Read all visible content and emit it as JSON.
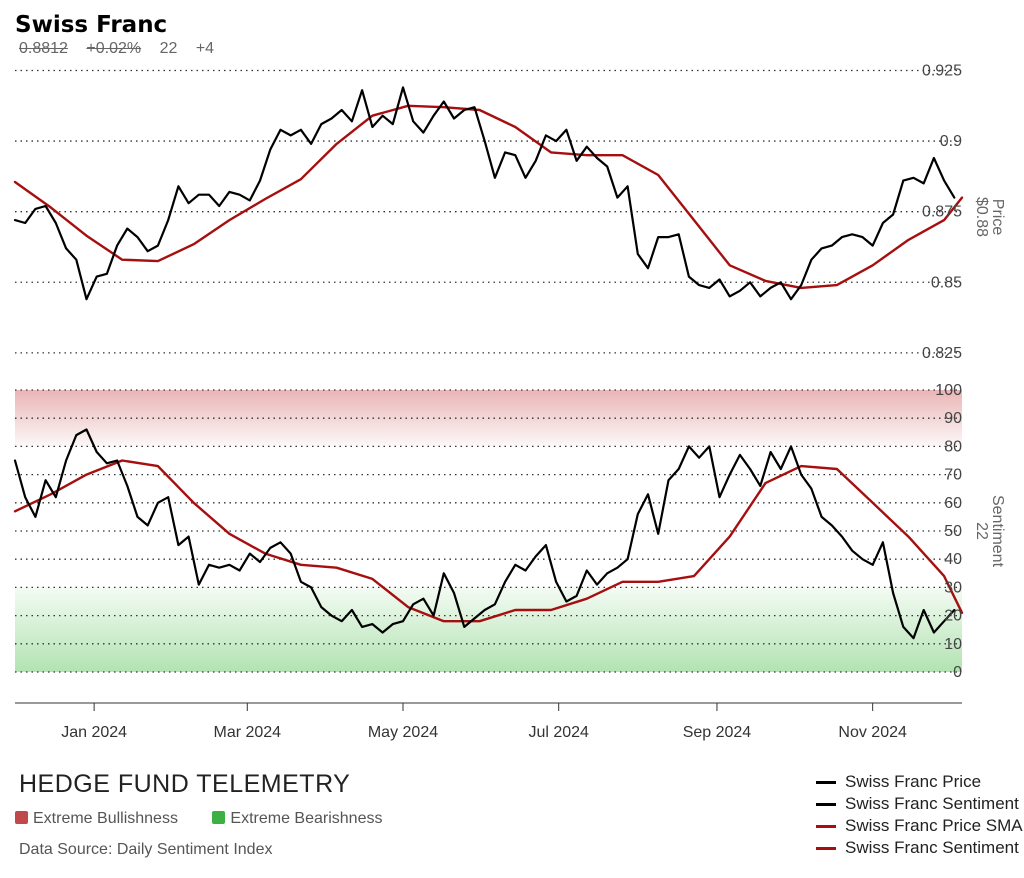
{
  "header": {
    "title": "Swiss Franc",
    "stats": [
      "0.8812",
      "+0.02%",
      "22",
      "+4"
    ]
  },
  "footer": {
    "brand": "HEDGE FUND TELEMETRY",
    "bull_label": "Extreme Bullishness",
    "bear_label": "Extreme Bearishness",
    "source": "Data Source: Daily Sentiment Index"
  },
  "colors": {
    "price": "#000000",
    "sma": "#a50f0f",
    "bull_zone": "#d9787a",
    "bear_zone": "#72cc72",
    "bull_swatch": "#c0494b",
    "bear_swatch": "#3cb043"
  },
  "chart_data": [
    {
      "type": "line",
      "ylabel": "Price",
      "ylabel_value": "$0.88",
      "ylim": [
        0.82,
        0.928
      ],
      "yticks": [
        0.825,
        0.85,
        0.875,
        0.9,
        0.925
      ],
      "ytick_labels": [
        "0.825",
        "0.85",
        "0.875",
        "0.9",
        "0.925"
      ],
      "x_start": "2023-12-01",
      "x_end": "2024-12-06",
      "series": [
        {
          "name": "Swiss Franc Price",
          "color": "#000000",
          "x": [
            "2023-12-01",
            "2023-12-05",
            "2023-12-09",
            "2023-12-13",
            "2023-12-17",
            "2023-12-21",
            "2023-12-25",
            "2023-12-29",
            "2024-01-02",
            "2024-01-06",
            "2024-01-10",
            "2024-01-14",
            "2024-01-18",
            "2024-01-22",
            "2024-01-26",
            "2024-01-30",
            "2024-02-03",
            "2024-02-07",
            "2024-02-11",
            "2024-02-15",
            "2024-02-19",
            "2024-02-23",
            "2024-02-27",
            "2024-03-02",
            "2024-03-06",
            "2024-03-10",
            "2024-03-14",
            "2024-03-18",
            "2024-03-22",
            "2024-03-26",
            "2024-03-30",
            "2024-04-03",
            "2024-04-07",
            "2024-04-11",
            "2024-04-15",
            "2024-04-19",
            "2024-04-23",
            "2024-04-27",
            "2024-05-01",
            "2024-05-05",
            "2024-05-09",
            "2024-05-13",
            "2024-05-17",
            "2024-05-21",
            "2024-05-25",
            "2024-05-29",
            "2024-06-02",
            "2024-06-06",
            "2024-06-10",
            "2024-06-14",
            "2024-06-18",
            "2024-06-22",
            "2024-06-26",
            "2024-06-30",
            "2024-07-04",
            "2024-07-08",
            "2024-07-12",
            "2024-07-16",
            "2024-07-20",
            "2024-07-24",
            "2024-07-28",
            "2024-08-01",
            "2024-08-05",
            "2024-08-09",
            "2024-08-13",
            "2024-08-17",
            "2024-08-21",
            "2024-08-25",
            "2024-08-29",
            "2024-09-02",
            "2024-09-06",
            "2024-09-10",
            "2024-09-14",
            "2024-09-18",
            "2024-09-22",
            "2024-09-26",
            "2024-09-30",
            "2024-10-04",
            "2024-10-08",
            "2024-10-12",
            "2024-10-16",
            "2024-10-20",
            "2024-10-24",
            "2024-10-28",
            "2024-11-01",
            "2024-11-05",
            "2024-11-09",
            "2024-11-13",
            "2024-11-17",
            "2024-11-21",
            "2024-11-25",
            "2024-11-29",
            "2024-12-03"
          ],
          "values": [
            0.872,
            0.871,
            0.876,
            0.877,
            0.871,
            0.862,
            0.858,
            0.844,
            0.852,
            0.853,
            0.863,
            0.869,
            0.866,
            0.861,
            0.863,
            0.872,
            0.884,
            0.878,
            0.881,
            0.881,
            0.877,
            0.882,
            0.881,
            0.879,
            0.886,
            0.897,
            0.904,
            0.902,
            0.904,
            0.899,
            0.906,
            0.908,
            0.911,
            0.907,
            0.918,
            0.905,
            0.909,
            0.906,
            0.919,
            0.907,
            0.903,
            0.909,
            0.914,
            0.908,
            0.911,
            0.912,
            0.9,
            0.887,
            0.896,
            0.895,
            0.887,
            0.893,
            0.902,
            0.9,
            0.904,
            0.893,
            0.898,
            0.894,
            0.891,
            0.88,
            0.884,
            0.86,
            0.855,
            0.866,
            0.866,
            0.867,
            0.852,
            0.849,
            0.848,
            0.851,
            0.845,
            0.847,
            0.85,
            0.845,
            0.848,
            0.85,
            0.844,
            0.849,
            0.858,
            0.862,
            0.863,
            0.866,
            0.867,
            0.866,
            0.863,
            0.871,
            0.874,
            0.886,
            0.887,
            0.885,
            0.894,
            0.886,
            0.88
          ]
        },
        {
          "name": "Swiss Franc Price SMA",
          "color": "#a50f0f",
          "x": [
            "2023-12-01",
            "2023-12-15",
            "2023-12-29",
            "2024-01-12",
            "2024-01-26",
            "2024-02-09",
            "2024-02-23",
            "2024-03-08",
            "2024-03-22",
            "2024-04-05",
            "2024-04-19",
            "2024-05-03",
            "2024-05-17",
            "2024-05-31",
            "2024-06-14",
            "2024-06-28",
            "2024-07-12",
            "2024-07-26",
            "2024-08-09",
            "2024-08-23",
            "2024-09-06",
            "2024-09-20",
            "2024-10-04",
            "2024-10-18",
            "2024-11-01",
            "2024-11-15",
            "2024-11-29",
            "2024-12-06"
          ],
          "values": [
            0.8855,
            0.8765,
            0.8665,
            0.858,
            0.8575,
            0.8635,
            0.872,
            0.8795,
            0.8865,
            0.899,
            0.909,
            0.9125,
            0.912,
            0.911,
            0.905,
            0.896,
            0.895,
            0.895,
            0.888,
            0.872,
            0.856,
            0.8505,
            0.848,
            0.849,
            0.856,
            0.865,
            0.872,
            0.88
          ]
        }
      ]
    },
    {
      "type": "line",
      "ylabel": "Sentiment",
      "ylabel_value": "22",
      "ylim": [
        0,
        100
      ],
      "yticks": [
        0,
        10,
        20,
        30,
        40,
        50,
        60,
        70,
        80,
        90,
        100
      ],
      "ytick_labels": [
        "0",
        "10",
        "20",
        "30",
        "40",
        "50",
        "60",
        "70",
        "80",
        "90",
        "100"
      ],
      "bull_zone": [
        80,
        100
      ],
      "bear_zone": [
        0,
        30
      ],
      "x_start": "2023-12-01",
      "x_end": "2024-12-06",
      "x_ticks": [
        "2024-01-01",
        "2024-03-01",
        "2024-05-01",
        "2024-07-01",
        "2024-09-01",
        "2024-11-01"
      ],
      "x_tick_labels": [
        "Jan 2024",
        "Mar 2024",
        "May 2024",
        "Jul 2024",
        "Sep 2024",
        "Nov 2024"
      ],
      "series": [
        {
          "name": "Swiss Franc Sentiment",
          "color": "#000000",
          "x": [
            "2023-12-01",
            "2023-12-05",
            "2023-12-09",
            "2023-12-13",
            "2023-12-17",
            "2023-12-21",
            "2023-12-25",
            "2023-12-29",
            "2024-01-02",
            "2024-01-06",
            "2024-01-10",
            "2024-01-14",
            "2024-01-18",
            "2024-01-22",
            "2024-01-26",
            "2024-01-30",
            "2024-02-03",
            "2024-02-07",
            "2024-02-11",
            "2024-02-15",
            "2024-02-19",
            "2024-02-23",
            "2024-02-27",
            "2024-03-02",
            "2024-03-06",
            "2024-03-10",
            "2024-03-14",
            "2024-03-18",
            "2024-03-22",
            "2024-03-26",
            "2024-03-30",
            "2024-04-03",
            "2024-04-07",
            "2024-04-11",
            "2024-04-15",
            "2024-04-19",
            "2024-04-23",
            "2024-04-27",
            "2024-05-01",
            "2024-05-05",
            "2024-05-09",
            "2024-05-13",
            "2024-05-17",
            "2024-05-21",
            "2024-05-25",
            "2024-05-29",
            "2024-06-02",
            "2024-06-06",
            "2024-06-10",
            "2024-06-14",
            "2024-06-18",
            "2024-06-22",
            "2024-06-26",
            "2024-06-30",
            "2024-07-04",
            "2024-07-08",
            "2024-07-12",
            "2024-07-16",
            "2024-07-20",
            "2024-07-24",
            "2024-07-28",
            "2024-08-01",
            "2024-08-05",
            "2024-08-09",
            "2024-08-13",
            "2024-08-17",
            "2024-08-21",
            "2024-08-25",
            "2024-08-29",
            "2024-09-02",
            "2024-09-06",
            "2024-09-10",
            "2024-09-14",
            "2024-09-18",
            "2024-09-22",
            "2024-09-26",
            "2024-09-30",
            "2024-10-04",
            "2024-10-08",
            "2024-10-12",
            "2024-10-16",
            "2024-10-20",
            "2024-10-24",
            "2024-10-28",
            "2024-11-01",
            "2024-11-05",
            "2024-11-09",
            "2024-11-13",
            "2024-11-17",
            "2024-11-21",
            "2024-11-25",
            "2024-11-29",
            "2024-12-03"
          ],
          "values": [
            75,
            62,
            55,
            68,
            62,
            75,
            84,
            86,
            78,
            74,
            75,
            66,
            55,
            52,
            60,
            62,
            45,
            48,
            31,
            38,
            37,
            38,
            36,
            42,
            39,
            44,
            46,
            42,
            32,
            30,
            23,
            20,
            18,
            22,
            16,
            17,
            14,
            17,
            18,
            24,
            26,
            20,
            35,
            28,
            16,
            19,
            22,
            24,
            32,
            38,
            36,
            41,
            45,
            32,
            25,
            27,
            36,
            31,
            35,
            37,
            40,
            56,
            63,
            49,
            68,
            72,
            80,
            76,
            80,
            62,
            70,
            77,
            72,
            66,
            78,
            72,
            80,
            70,
            65,
            55,
            52,
            48,
            43,
            40,
            38,
            46,
            28,
            16,
            12,
            22,
            14,
            18,
            22
          ]
        },
        {
          "name": "Swiss Franc Sentiment SMA",
          "color": "#a50f0f",
          "x": [
            "2023-12-01",
            "2023-12-15",
            "2023-12-29",
            "2024-01-12",
            "2024-01-26",
            "2024-02-09",
            "2024-02-23",
            "2024-03-08",
            "2024-03-22",
            "2024-04-05",
            "2024-04-19",
            "2024-05-03",
            "2024-05-17",
            "2024-05-31",
            "2024-06-14",
            "2024-06-28",
            "2024-07-12",
            "2024-07-26",
            "2024-08-09",
            "2024-08-23",
            "2024-09-06",
            "2024-09-20",
            "2024-10-04",
            "2024-10-18",
            "2024-11-01",
            "2024-11-15",
            "2024-11-29",
            "2024-12-06"
          ],
          "values": [
            57,
            63,
            70,
            75,
            73,
            60,
            49,
            42,
            38,
            37,
            33,
            23,
            18,
            18,
            22,
            22,
            26,
            32,
            32,
            34,
            48,
            67,
            73,
            72,
            60,
            48,
            34,
            21
          ]
        }
      ]
    }
  ]
}
